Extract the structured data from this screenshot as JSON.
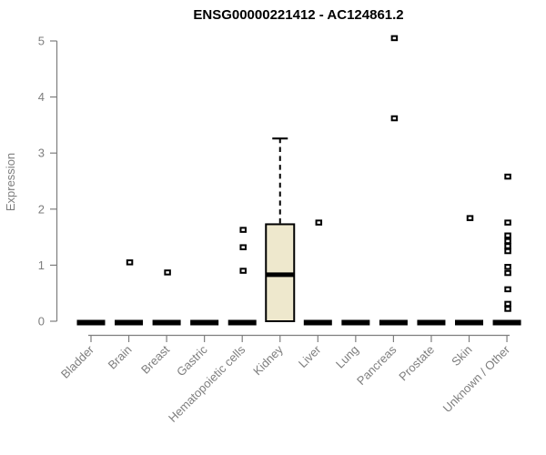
{
  "chart_data": {
    "type": "boxplot",
    "title": "ENSG00000221412 - AC124861.2",
    "ylabel": "Expression",
    "xlabel": "",
    "ylim": [
      0,
      5
    ],
    "yticks": [
      0,
      1,
      2,
      3,
      4,
      5
    ],
    "grid": false,
    "legend": null,
    "categories": [
      "Bladder",
      "Brain",
      "Breast",
      "Gastric",
      "Hematopoietic cells",
      "Kidney",
      "Liver",
      "Lung",
      "Pancreas",
      "Prostate",
      "Skin",
      "Unknown / Other"
    ],
    "boxes": [
      {
        "category": "Bladder",
        "min": 0,
        "q1": 0,
        "median": 0,
        "q3": 0,
        "max": 0,
        "outliers": []
      },
      {
        "category": "Brain",
        "min": 0,
        "q1": 0,
        "median": 0,
        "q3": 0,
        "max": 0,
        "outliers": [
          1.05
        ]
      },
      {
        "category": "Breast",
        "min": 0,
        "q1": 0,
        "median": 0,
        "q3": 0,
        "max": 0,
        "outliers": [
          0.87
        ]
      },
      {
        "category": "Gastric",
        "min": 0,
        "q1": 0,
        "median": 0,
        "q3": 0,
        "max": 0,
        "outliers": []
      },
      {
        "category": "Hematopoietic cells",
        "min": 0,
        "q1": 0,
        "median": 0,
        "q3": 0,
        "max": 0,
        "outliers": [
          1.63,
          1.32,
          0.9
        ]
      },
      {
        "category": "Kidney",
        "min": 0,
        "q1": 0,
        "median": 0.83,
        "q3": 1.73,
        "max": 3.26,
        "outliers": []
      },
      {
        "category": "Liver",
        "min": 0,
        "q1": 0,
        "median": 0,
        "q3": 0,
        "max": 0,
        "outliers": [
          1.76
        ]
      },
      {
        "category": "Lung",
        "min": 0,
        "q1": 0,
        "median": 0,
        "q3": 0,
        "max": 0,
        "outliers": []
      },
      {
        "category": "Pancreas",
        "min": 0,
        "q1": 0,
        "median": 0,
        "q3": 0,
        "max": 0,
        "outliers": [
          5.05,
          3.62
        ]
      },
      {
        "category": "Prostate",
        "min": 0,
        "q1": 0,
        "median": 0,
        "q3": 0,
        "max": 0,
        "outliers": []
      },
      {
        "category": "Skin",
        "min": 0,
        "q1": 0,
        "median": 0,
        "q3": 0,
        "max": 0,
        "outliers": [
          1.84
        ]
      },
      {
        "category": "Unknown / Other",
        "min": 0,
        "q1": 0,
        "median": 0,
        "q3": 0,
        "max": 0,
        "outliers": [
          2.58,
          1.76,
          1.53,
          1.43,
          1.34,
          1.25,
          0.97,
          0.86,
          0.57,
          0.31,
          0.22
        ]
      }
    ],
    "colors": {
      "box_fill": "#EEE8CD",
      "box_border": "#000000",
      "median": "#000000",
      "flat_bar": "#000000",
      "outlier_fill": "#ffffff",
      "outlier_border": "#000000",
      "axis": "#7e7e7e",
      "title": "#000000",
      "background": "#ffffff"
    }
  }
}
